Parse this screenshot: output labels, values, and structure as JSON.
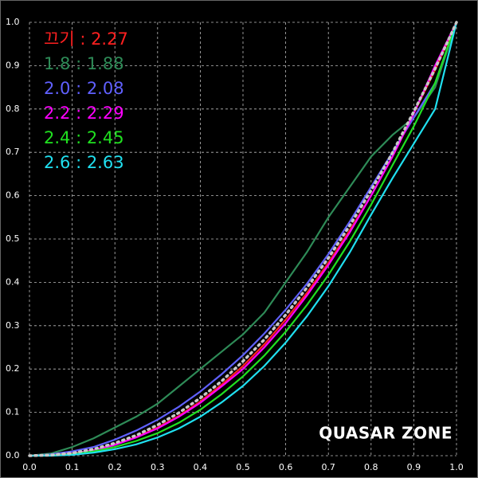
{
  "chart_data": {
    "type": "line",
    "x": [
      0,
      0.05,
      0.1,
      0.15,
      0.2,
      0.25,
      0.3,
      0.35,
      0.4,
      0.45,
      0.5,
      0.55,
      0.6,
      0.65,
      0.7,
      0.75,
      0.8,
      0.85,
      0.9,
      0.95,
      1
    ],
    "series": [
      {
        "color": "#c8c8c8",
        "dotted": true,
        "values": [
          0,
          0.0014,
          0.006,
          0.015,
          0.029,
          0.047,
          0.071,
          0.099,
          0.133,
          0.172,
          0.218,
          0.268,
          0.325,
          0.388,
          0.456,
          0.531,
          0.612,
          0.699,
          0.794,
          0.893,
          1
        ]
      },
      {
        "name": "끄기 : 2.27",
        "color": "#ff2020",
        "values": [
          0,
          0.001,
          0.005,
          0.013,
          0.026,
          0.043,
          0.065,
          0.092,
          0.125,
          0.164,
          0.207,
          0.257,
          0.314,
          0.376,
          0.445,
          0.52,
          0.6,
          0.69,
          0.79,
          0.89,
          1
        ]
      },
      {
        "name": "1.8 : 1.88",
        "color": "#2e8b57",
        "values": [
          0,
          0.005,
          0.02,
          0.04,
          0.065,
          0.09,
          0.12,
          0.16,
          0.2,
          0.24,
          0.28,
          0.33,
          0.4,
          0.47,
          0.55,
          0.62,
          0.69,
          0.74,
          0.78,
          0.85,
          1
        ]
      },
      {
        "name": "2.0 : 2.08",
        "color": "#6060ff",
        "values": [
          0,
          0.003,
          0.01,
          0.02,
          0.037,
          0.058,
          0.083,
          0.113,
          0.148,
          0.188,
          0.232,
          0.282,
          0.337,
          0.397,
          0.465,
          0.54,
          0.62,
          0.7,
          0.78,
          0.86,
          1
        ]
      },
      {
        "name": "2.2 : 2.29",
        "color": "#ff00ff",
        "values": [
          0,
          0.001,
          0.005,
          0.012,
          0.025,
          0.042,
          0.063,
          0.09,
          0.122,
          0.16,
          0.2,
          0.25,
          0.306,
          0.37,
          0.44,
          0.515,
          0.6,
          0.69,
          0.79,
          0.9,
          1
        ]
      },
      {
        "name": "2.4 : 2.45",
        "color": "#20e020",
        "values": [
          0,
          0.001,
          0.004,
          0.01,
          0.02,
          0.034,
          0.052,
          0.076,
          0.106,
          0.142,
          0.183,
          0.231,
          0.286,
          0.348,
          0.417,
          0.494,
          0.579,
          0.67,
          0.76,
          0.86,
          1
        ]
      },
      {
        "name": "2.6 : 2.63",
        "color": "#20e0f0",
        "values": [
          0,
          0,
          0.002,
          0.007,
          0.015,
          0.026,
          0.042,
          0.063,
          0.09,
          0.123,
          0.161,
          0.207,
          0.261,
          0.322,
          0.391,
          0.469,
          0.556,
          0.64,
          0.72,
          0.8,
          1
        ]
      }
    ],
    "xlim": [
      0,
      1
    ],
    "ylim": [
      0,
      1
    ],
    "xticks": [
      {
        "value": 0,
        "label": "0.0"
      },
      0.1,
      0.2,
      0.3,
      0.4,
      0.5,
      0.6,
      0.7,
      0.8,
      0.9,
      {
        "value": 1,
        "label": "1.0"
      }
    ],
    "yticks": [
      {
        "value": 0,
        "label": "0.0"
      },
      0.1,
      0.2,
      0.3,
      0.4,
      0.5,
      0.6,
      0.7,
      0.8,
      0.9,
      {
        "value": 1,
        "label": "1.0"
      }
    ],
    "grid": true,
    "watermark": "QUASAR ZONE"
  }
}
